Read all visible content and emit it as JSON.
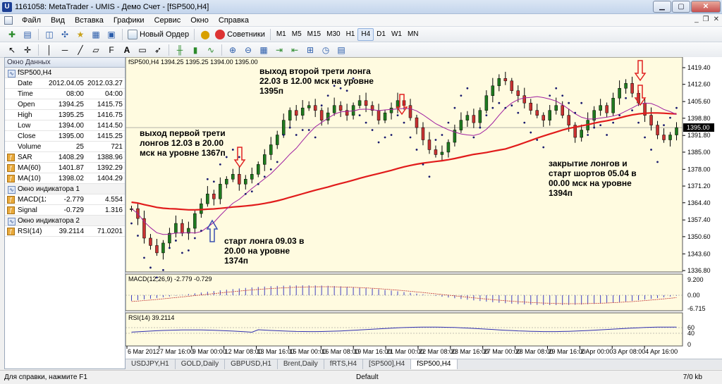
{
  "window": {
    "title": "1161058: MetaTrader - UMIS - Демо Счет - [fSP500,H4]"
  },
  "menu": [
    "Файл",
    "Вид",
    "Вставка",
    "Графики",
    "Сервис",
    "Окно",
    "Справка"
  ],
  "toolbar": {
    "new_order": "Новый Ордер",
    "advisors": "Советники",
    "timeframes": [
      "M1",
      "M5",
      "M15",
      "M30",
      "H1",
      "H4",
      "D1",
      "W1",
      "MN"
    ],
    "active_timeframe": "H4"
  },
  "data_window": {
    "title": "Окно Данных",
    "symbol": "fSP500,H4",
    "rows": [
      {
        "name": "Date",
        "v1": "2012.04.05",
        "v2": "2012.03.27"
      },
      {
        "name": "Time",
        "v1": "08:00",
        "v2": "04:00"
      },
      {
        "name": "Open",
        "v1": "1394.25",
        "v2": "1415.75"
      },
      {
        "name": "High",
        "v1": "1395.25",
        "v2": "1416.75"
      },
      {
        "name": "Low",
        "v1": "1394.00",
        "v2": "1414.50"
      },
      {
        "name": "Close",
        "v1": "1395.00",
        "v2": "1415.25"
      },
      {
        "name": "Volume",
        "v1": "25",
        "v2": "721"
      }
    ],
    "indicators": [
      {
        "name": "SAR",
        "v1": "1408.29",
        "v2": "1388.96"
      },
      {
        "name": "MA(60)",
        "v1": "1401.87",
        "v2": "1392.29"
      },
      {
        "name": "MA(10)",
        "v1": "1398.02",
        "v2": "1404.29"
      }
    ],
    "window1": "Окно индикатора 1",
    "window1_rows": [
      {
        "name": "MACD(12...",
        "v1": "-2.779",
        "v2": "4.554"
      },
      {
        "name": "Signal",
        "v1": "-0.729",
        "v2": "1.316"
      }
    ],
    "window2": "Окно индикатора 2",
    "window2_rows": [
      {
        "name": "RSI(14)",
        "v1": "39.2114",
        "v2": "71.0201"
      }
    ]
  },
  "chart": {
    "header": "fSP500,H4  1394.25 1395.25 1394.00 1395.00",
    "price_levels": [
      "1419.40",
      "1412.60",
      "1405.60",
      "1398.80",
      "1391.80",
      "1385.00",
      "1378.00",
      "1371.20",
      "1364.40",
      "1357.40",
      "1350.60",
      "1343.60",
      "1336.80"
    ],
    "current_price": "1395.00",
    "macd_header": "MACD(12,26,9) -2.779 -0.729",
    "macd_levels": [
      "9.200",
      "0.00",
      "-6.715"
    ],
    "rsi_header": "RSI(14) 39.2114",
    "rsi_levels": [
      "60",
      "40",
      "0"
    ],
    "time_labels": [
      "6 Mar 2012",
      "7 Mar 16:00",
      "9 Mar 00:00",
      "12 Mar 08:00",
      "13 Mar 16:00",
      "15 Mar 00:00",
      "16 Mar 08:00",
      "19 Mar 16:00",
      "21 Mar 00:00",
      "22 Mar 08:00",
      "23 Mar 16:00",
      "27 Mar 00:00",
      "28 Mar 08:00",
      "29 Mar 16:00",
      "2 Apr 00:00",
      "3 Apr 08:00",
      "4 Apr 16:00"
    ],
    "annotations": {
      "second_third": [
        "выход второй трети лонга",
        "22.03 в 12.00 мск на уровне",
        "1395п"
      ],
      "first_third": [
        "выход первой трети",
        "лонгов 12.03 в 20.00",
        "мск на уровне 1367п"
      ],
      "long_start": [
        "старт лонга 09.03 в",
        "20.00 на уровне",
        "1374п"
      ],
      "close_longs": [
        "закрытие лонгов и",
        "старт шортов 05.04 в",
        "00.00 мск на уровне",
        "1394п"
      ]
    },
    "colors": {
      "background": "#fffbe0",
      "ma60": "#e11b1b",
      "ma10": "#a020a0",
      "sar": "#1a1a6e",
      "bull": "#1f7a1f",
      "bear": "#c83232",
      "arrow_red": "#e02020",
      "arrow_blue": "#3a4fb0"
    }
  },
  "tabs": [
    "USDJPY,H1",
    "GOLD,Daily",
    "GBPUSD,H1",
    "Brent,Daily",
    "fRTS,H4",
    "[SP500],H4",
    "fSP500,H4"
  ],
  "active_tab": "fSP500,H4",
  "status": {
    "help": "Для справки, нажмите F1",
    "profile": "Default",
    "traffic": "7/0 kb"
  }
}
